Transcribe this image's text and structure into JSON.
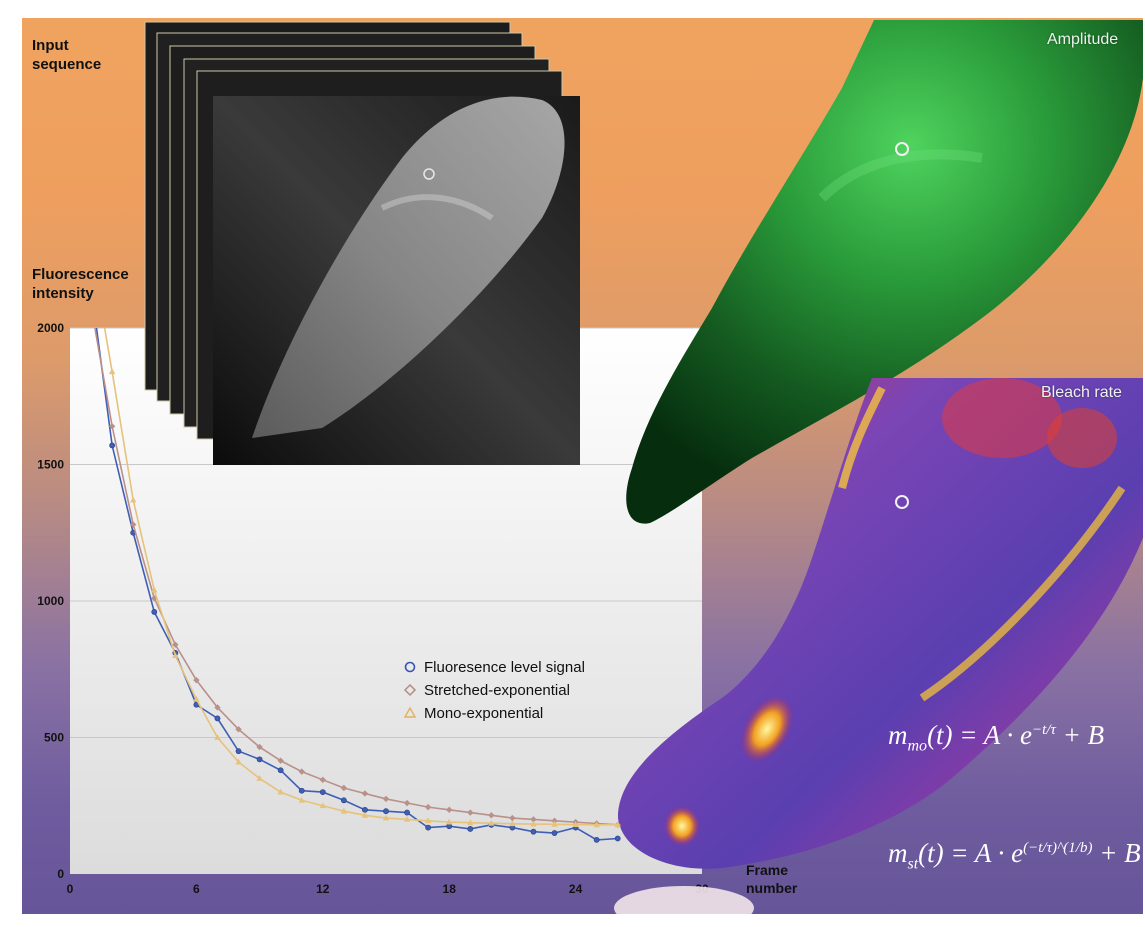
{
  "labels": {
    "input_sequence_line1": "Input",
    "input_sequence_line2": "sequence",
    "amplitude": "Amplitude",
    "bleach_rate": "Bleach rate",
    "fluorescence_line1": "Fluorescence",
    "fluorescence_line2": "intensity",
    "frame_line1": "Frame",
    "frame_line2": "number"
  },
  "formulas": {
    "mono": {
      "lhs": "m",
      "sub": "mo",
      "rhs": "(t) = A · e",
      "sup": "−t/τ",
      "tail": "+ B"
    },
    "stretched": {
      "lhs": "m",
      "sub": "st",
      "rhs": "(t) = A · e",
      "sup": "(−t/τ)^(1/b)",
      "tail": "+ B"
    }
  },
  "chart_data": {
    "type": "line",
    "xlabel": "Frame number",
    "ylabel": "Fluorescence intensity",
    "xlim": [
      0,
      30
    ],
    "ylim": [
      0,
      2000
    ],
    "xticks": [
      "0",
      "6",
      "12",
      "18",
      "24",
      "30"
    ],
    "yticks": [
      "0",
      "500",
      "1000",
      "1500",
      "2000"
    ],
    "grid": "horizontal",
    "legend_position": "center-right",
    "series": [
      {
        "name": "Fluoresence level signal",
        "color": "#3f5fb5",
        "marker": "circle",
        "x": [
          1,
          2,
          3,
          4,
          5,
          6,
          7,
          8,
          9,
          10,
          11,
          12,
          13,
          14,
          15,
          16,
          17,
          18,
          19,
          20,
          21,
          22,
          23,
          24,
          25,
          26
        ],
        "y": [
          2150,
          1570,
          1250,
          960,
          810,
          620,
          570,
          450,
          420,
          380,
          305,
          300,
          270,
          235,
          230,
          225,
          170,
          175,
          165,
          180,
          170,
          155,
          150,
          170,
          125,
          130
        ]
      },
      {
        "name": "Stretched-exponential",
        "color": "#b9908a",
        "marker": "diamond",
        "x": [
          1,
          2,
          3,
          4,
          5,
          6,
          7,
          8,
          9,
          10,
          11,
          12,
          13,
          14,
          15,
          16,
          17,
          18,
          19,
          20,
          21,
          22,
          23,
          24,
          25,
          26
        ],
        "y": [
          2080,
          1640,
          1280,
          1010,
          840,
          710,
          610,
          530,
          465,
          415,
          375,
          345,
          315,
          295,
          275,
          260,
          245,
          235,
          225,
          215,
          205,
          200,
          195,
          190,
          185,
          180
        ]
      },
      {
        "name": "Mono-exponential",
        "color": "#e6c27a",
        "marker": "triangle",
        "x": [
          1,
          2,
          3,
          4,
          5,
          6,
          7,
          8,
          9,
          10,
          11,
          12,
          13,
          14,
          15,
          16,
          17,
          18,
          19,
          20,
          21,
          22,
          23,
          24,
          25,
          26
        ],
        "y": [
          2290,
          1840,
          1370,
          1040,
          800,
          640,
          500,
          410,
          350,
          300,
          270,
          250,
          230,
          215,
          205,
          200,
          195,
          190,
          188,
          186,
          184,
          183,
          182,
          181,
          180,
          180
        ]
      }
    ]
  }
}
